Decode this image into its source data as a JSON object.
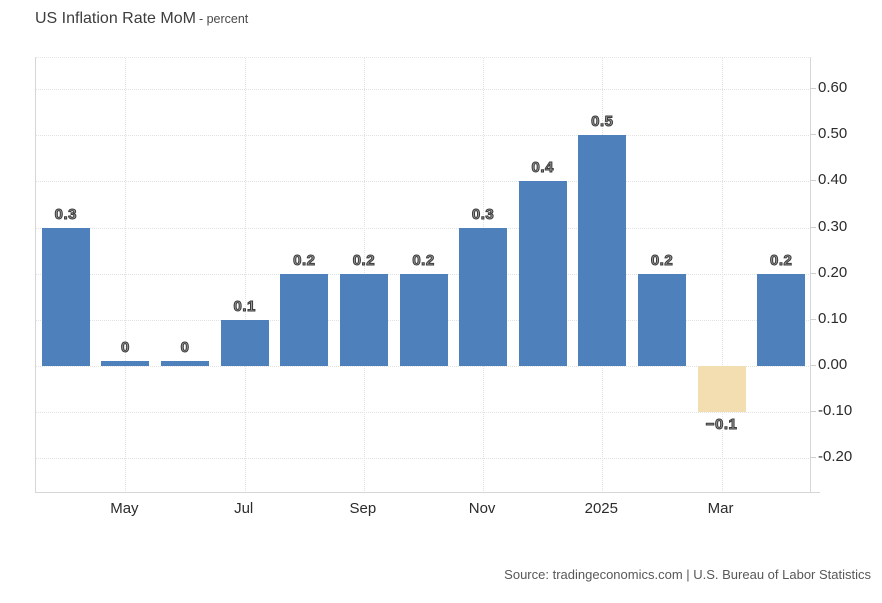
{
  "title": {
    "main": "US Inflation Rate MoM",
    "unit": "- percent"
  },
  "source": {
    "text": "Source: tradingeconomics.com | U.S. Bureau of Labor Statistics"
  },
  "chart_data": {
    "type": "bar",
    "title": "US Inflation Rate MoM",
    "unit": "percent",
    "values": [
      0.3,
      0,
      0,
      0.1,
      0.2,
      0.2,
      0.2,
      0.3,
      0.4,
      0.5,
      0.2,
      -0.1,
      0.2
    ],
    "bar_labels": [
      "0.3",
      "0",
      "0",
      "0.1",
      "0.2",
      "0.2",
      "0.2",
      "0.3",
      "0.4",
      "0.5",
      "0.2",
      "−0.1",
      "0.2"
    ],
    "xtick_labels": [
      "May",
      "Jul",
      "Sep",
      "Nov",
      "2025",
      "Mar"
    ],
    "xtick_slots": [
      1,
      3,
      5,
      7,
      9,
      11
    ],
    "ytick_labels": [
      "0.60",
      "0.50",
      "0.40",
      "0.30",
      "0.20",
      "0.10",
      "0.00",
      "-0.10",
      "-0.20"
    ],
    "ytick_values": [
      0.6,
      0.5,
      0.4,
      0.3,
      0.2,
      0.1,
      0,
      -0.1,
      -0.2
    ],
    "ylim": [
      -0.275,
      0.667
    ],
    "grid": true,
    "legend": "none",
    "colors": {
      "bar_positive": "#4e80bc",
      "bar_negative": "#f3deb1",
      "grid": "#e2e2e2",
      "axis_line": "#d6d6d6",
      "tick_text": "#2b2b2b",
      "bar_label_fill": "#9a9a9a",
      "bar_label_stroke": "#3a3a3a"
    }
  }
}
